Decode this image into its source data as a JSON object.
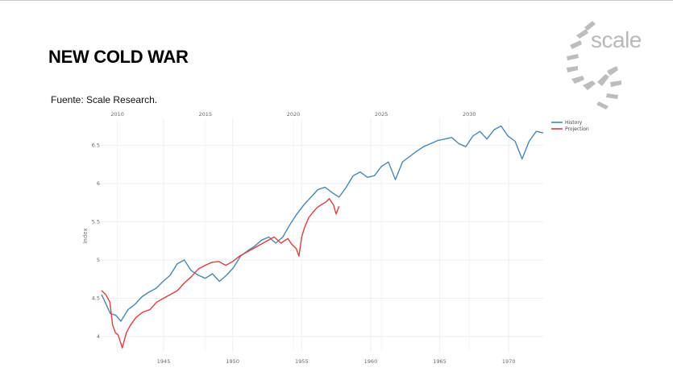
{
  "slide": {
    "title": "NEW COLD WAR",
    "source": "Fuente: Scale Research."
  },
  "logo": {
    "text": "scale",
    "icon": "scale-logo-icon",
    "color": "#b9b9b9"
  },
  "chart_data": {
    "type": "line",
    "title": "",
    "xlabel": "",
    "ylabel": "Index",
    "grid": true,
    "legend_position": "top-right",
    "x_bottom": {
      "ticks": [
        1945,
        1950,
        1955,
        1960,
        1965,
        1970
      ],
      "range": [
        1940.5,
        1972.5
      ]
    },
    "x_top": {
      "ticks": [
        2010,
        2015,
        2020,
        2025,
        2030
      ],
      "range": [
        2009.1,
        2034.2
      ]
    },
    "y": {
      "ticks": [
        4,
        4.5,
        5,
        5.5,
        6,
        6.5
      ],
      "tick_labels": [
        "4",
        "4.5",
        "5",
        "5.5",
        "6",
        "6.5"
      ],
      "range": [
        3.8,
        6.85
      ]
    },
    "series": [
      {
        "name": "History",
        "axis": "top",
        "color": "#4a86b4",
        "x": [
          2009.1,
          2009.3,
          2009.6,
          2009.9,
          2010.2,
          2010.6,
          2011.0,
          2011.4,
          2011.8,
          2012.2,
          2012.6,
          2013.0,
          2013.4,
          2013.8,
          2014.2,
          2014.6,
          2015.0,
          2015.4,
          2015.8,
          2016.2,
          2016.6,
          2017.0,
          2017.4,
          2017.8,
          2018.2,
          2018.6,
          2019.0,
          2019.4,
          2019.8,
          2020.2,
          2020.6,
          2021.0,
          2021.4,
          2021.8,
          2022.2,
          2022.6,
          2023.0,
          2023.4,
          2023.8,
          2024.2,
          2024.6,
          2025.0,
          2025.4,
          2025.8,
          2026.2,
          2026.6,
          2027.0,
          2027.4,
          2027.8,
          2028.2,
          2028.6,
          2029.0,
          2029.4,
          2029.8,
          2030.2,
          2030.6,
          2031.0,
          2031.4,
          2031.8,
          2032.2,
          2032.6,
          2033.0,
          2033.4,
          2033.8,
          2034.2
        ],
        "y": [
          4.55,
          4.45,
          4.3,
          4.28,
          4.2,
          4.35,
          4.42,
          4.52,
          4.58,
          4.63,
          4.72,
          4.8,
          4.95,
          5.0,
          4.86,
          4.8,
          4.76,
          4.82,
          4.72,
          4.8,
          4.9,
          5.05,
          5.12,
          5.18,
          5.26,
          5.3,
          5.22,
          5.3,
          5.46,
          5.6,
          5.72,
          5.82,
          5.92,
          5.95,
          5.88,
          5.82,
          5.95,
          6.1,
          6.15,
          6.08,
          6.1,
          6.22,
          6.28,
          6.05,
          6.28,
          6.35,
          6.42,
          6.48,
          6.52,
          6.56,
          6.58,
          6.6,
          6.52,
          6.48,
          6.62,
          6.68,
          6.58,
          6.7,
          6.75,
          6.62,
          6.55,
          6.32,
          6.55,
          6.68,
          6.66
        ]
      },
      {
        "name": "Projection",
        "axis": "bottom",
        "color": "#d94040",
        "x": [
          1940.5,
          1940.8,
          1941.1,
          1941.3,
          1941.5,
          1941.7,
          1942.0,
          1942.3,
          1942.6,
          1943.0,
          1943.5,
          1944.0,
          1944.5,
          1945.0,
          1945.5,
          1946.0,
          1946.5,
          1947.0,
          1947.5,
          1948.0,
          1948.5,
          1949.0,
          1949.5,
          1950.0,
          1950.5,
          1951.0,
          1951.5,
          1952.0,
          1952.5,
          1953.0,
          1953.5,
          1954.0,
          1954.3,
          1954.6,
          1954.8,
          1955.0,
          1955.2,
          1955.5,
          1955.8,
          1956.1,
          1956.4,
          1956.7,
          1957.0,
          1957.3,
          1957.5,
          1957.7
        ],
        "y": [
          4.6,
          4.55,
          4.45,
          4.15,
          4.05,
          4.02,
          3.85,
          4.05,
          4.15,
          4.25,
          4.32,
          4.35,
          4.45,
          4.5,
          4.55,
          4.6,
          4.7,
          4.78,
          4.88,
          4.93,
          4.97,
          4.98,
          4.93,
          4.98,
          5.05,
          5.1,
          5.15,
          5.2,
          5.25,
          5.3,
          5.22,
          5.28,
          5.2,
          5.15,
          5.05,
          5.3,
          5.42,
          5.55,
          5.62,
          5.68,
          5.72,
          5.75,
          5.8,
          5.72,
          5.6,
          5.7
        ]
      }
    ]
  }
}
